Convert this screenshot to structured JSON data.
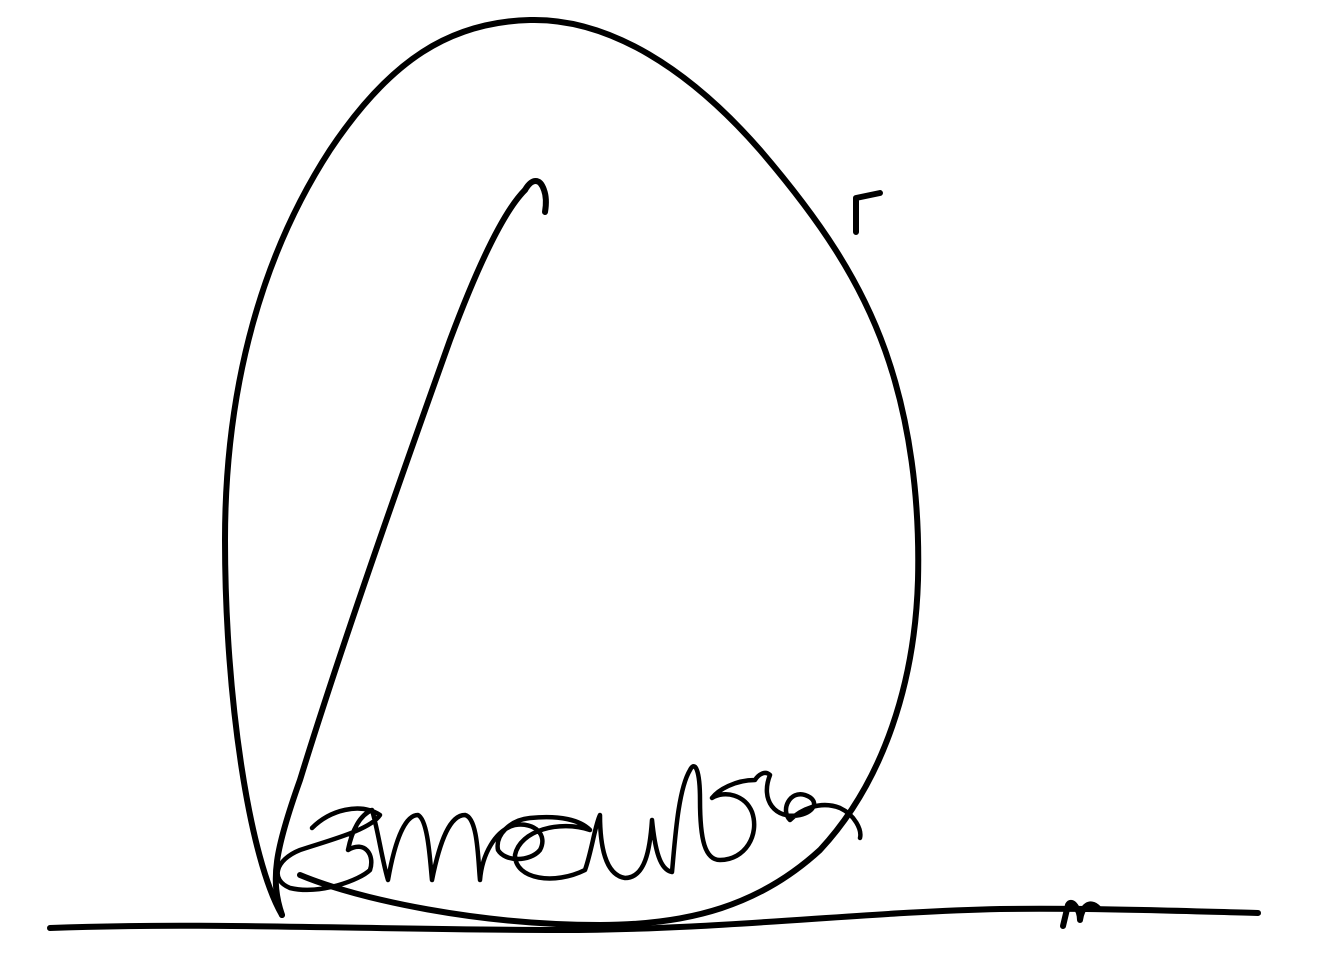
{
  "image": {
    "background_color": "#ffffff",
    "ink_color": "#000000"
  },
  "signature": {
    "kind": "handwritten-signature"
  }
}
